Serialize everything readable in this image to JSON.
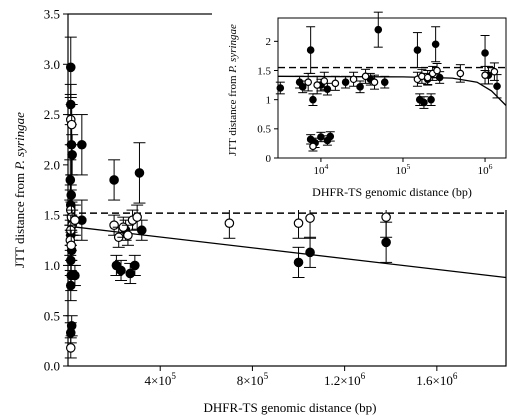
{
  "chart_data": [
    {
      "id": "main",
      "type": "scatter",
      "xlabel": "DHFR-TS genomic distance (bp)",
      "ylabel_prefix": "JTT distance from ",
      "ylabel_species": "P. syringae",
      "xlim": [
        0,
        1900000
      ],
      "ylim": [
        0,
        3.5
      ],
      "x_ticks": [
        400000,
        800000,
        1200000,
        1600000
      ],
      "x_tick_labels": [
        "4×10",
        "8×10",
        "1.2×10",
        "1.6×10"
      ],
      "x_tick_exponents": [
        "5",
        "5",
        "6",
        "6"
      ],
      "y_ticks": [
        0.0,
        0.5,
        1.0,
        1.5,
        2.0,
        2.5,
        3.0,
        3.5
      ],
      "y_tick_labels": [
        "0.0",
        "0.5",
        "1.0",
        "1.5",
        "2.0",
        "2.5",
        "3.0",
        "3.5"
      ],
      "reference_line": {
        "style": "dashed",
        "y": 1.52
      },
      "fit_line": {
        "style": "solid",
        "points": [
          [
            0,
            1.39
          ],
          [
            1900000,
            0.88
          ]
        ]
      },
      "series": [
        {
          "marker": "filled-circle",
          "points": [
            {
              "x": 12000,
              "y": 2.97,
              "err": 0.3
            },
            {
              "x": 12000,
              "y": 2.6,
              "err": 0.2
            },
            {
              "x": 15000,
              "y": 2.2,
              "err": 0.3
            },
            {
              "x": 18000,
              "y": 2.1,
              "err": 0.2
            },
            {
              "x": 10000,
              "y": 1.85,
              "err": 0.2
            },
            {
              "x": 14000,
              "y": 1.7,
              "err": 0.2
            },
            {
              "x": 12000,
              "y": 1.6,
              "err": 0.2
            },
            {
              "x": 20000,
              "y": 1.45,
              "err": 0.15
            },
            {
              "x": 12000,
              "y": 1.3,
              "err": 0.15
            },
            {
              "x": 16000,
              "y": 1.15,
              "err": 0.15
            },
            {
              "x": 12000,
              "y": 1.05,
              "err": 0.15
            },
            {
              "x": 14000,
              "y": 0.9,
              "err": 0.15
            },
            {
              "x": 12000,
              "y": 0.8,
              "err": 0.15
            },
            {
              "x": 16000,
              "y": 0.4,
              "err": 0.1
            },
            {
              "x": 12000,
              "y": 0.33,
              "err": 0.1
            },
            {
              "x": 30000,
              "y": 0.9,
              "err": 0.1
            },
            {
              "x": 60000,
              "y": 2.2,
              "err": 0.3
            },
            {
              "x": 60000,
              "y": 1.45,
              "err": 0.2
            },
            {
              "x": 200000,
              "y": 1.85,
              "err": 0.2
            },
            {
              "x": 210000,
              "y": 1.0,
              "err": 0.1
            },
            {
              "x": 230000,
              "y": 0.95,
              "err": 0.1
            },
            {
              "x": 250000,
              "y": 1.35,
              "err": 0.1
            },
            {
              "x": 270000,
              "y": 0.92,
              "err": 0.1
            },
            {
              "x": 290000,
              "y": 1.0,
              "err": 0.1
            },
            {
              "x": 310000,
              "y": 1.92,
              "err": 0.3
            },
            {
              "x": 320000,
              "y": 1.35,
              "err": 0.1
            },
            {
              "x": 1000000,
              "y": 1.03,
              "err": 0.15
            },
            {
              "x": 1050000,
              "y": 1.13,
              "err": 0.15
            },
            {
              "x": 1380000,
              "y": 1.23,
              "err": 0.2
            }
          ]
        },
        {
          "marker": "open-circle",
          "points": [
            {
              "x": 12000,
              "y": 2.45,
              "err": 0.25
            },
            {
              "x": 16000,
              "y": 2.4,
              "err": 0.2
            },
            {
              "x": 12000,
              "y": 1.55,
              "err": 0.2
            },
            {
              "x": 15000,
              "y": 1.48,
              "err": 0.15
            },
            {
              "x": 18000,
              "y": 1.4,
              "err": 0.15
            },
            {
              "x": 12000,
              "y": 1.35,
              "err": 0.15
            },
            {
              "x": 10000,
              "y": 1.25,
              "err": 0.15
            },
            {
              "x": 14000,
              "y": 1.2,
              "err": 0.15
            },
            {
              "x": 12000,
              "y": 0.18,
              "err": 0.1
            },
            {
              "x": 30000,
              "y": 1.45,
              "err": 0.15
            },
            {
              "x": 200000,
              "y": 1.4,
              "err": 0.1
            },
            {
              "x": 220000,
              "y": 1.28,
              "err": 0.1
            },
            {
              "x": 240000,
              "y": 1.38,
              "err": 0.1
            },
            {
              "x": 260000,
              "y": 1.3,
              "err": 0.1
            },
            {
              "x": 280000,
              "y": 1.45,
              "err": 0.1
            },
            {
              "x": 300000,
              "y": 1.48,
              "err": 0.12
            },
            {
              "x": 700000,
              "y": 1.42,
              "err": 0.15
            },
            {
              "x": 1000000,
              "y": 1.42,
              "err": 0.15
            },
            {
              "x": 1050000,
              "y": 1.47,
              "err": 0.2
            },
            {
              "x": 1380000,
              "y": 1.48,
              "err": 0.2
            }
          ]
        }
      ]
    },
    {
      "id": "inset",
      "type": "scatter",
      "xlabel": "DHFR-TS genomic distance (bp)",
      "ylabel_prefix": "JTT distance from ",
      "ylabel_species": "P. syringae",
      "x_scale": "log",
      "xlim": [
        3000,
        1800000
      ],
      "ylim": [
        0,
        2.4
      ],
      "x_ticks": [
        10000,
        100000,
        1000000
      ],
      "x_tick_labels": [
        "10",
        "10",
        "10"
      ],
      "x_tick_exponents": [
        "4",
        "5",
        "6"
      ],
      "y_ticks": [
        0,
        0.5,
        1.0,
        1.5,
        2.0
      ],
      "y_tick_labels": [
        "0",
        "0.5",
        "1",
        "1.5",
        "2"
      ],
      "reference_line": {
        "style": "dashed",
        "y": 1.55
      },
      "fit_line": {
        "style": "solid",
        "points": [
          [
            3000,
            1.4
          ],
          [
            100000,
            1.39
          ],
          [
            400000,
            1.37
          ],
          [
            800000,
            1.3
          ],
          [
            1200000,
            1.15
          ],
          [
            1800000,
            0.9
          ]
        ]
      },
      "series": [
        {
          "marker": "filled-circle",
          "points": [
            {
              "x": 3200,
              "y": 1.2,
              "err": 0.1
            },
            {
              "x": 5500,
              "y": 1.3,
              "err": 0.1
            },
            {
              "x": 6000,
              "y": 1.22,
              "err": 0.1
            },
            {
              "x": 7500,
              "y": 1.85,
              "err": 0.4
            },
            {
              "x": 8000,
              "y": 1.0,
              "err": 0.1
            },
            {
              "x": 7500,
              "y": 0.32,
              "err": 0.08
            },
            {
              "x": 8500,
              "y": 0.26,
              "err": 0.08
            },
            {
              "x": 10000,
              "y": 0.36,
              "err": 0.08
            },
            {
              "x": 12000,
              "y": 0.3,
              "err": 0.08
            },
            {
              "x": 13000,
              "y": 0.37,
              "err": 0.08
            },
            {
              "x": 10000,
              "y": 1.25,
              "err": 0.1
            },
            {
              "x": 12000,
              "y": 1.18,
              "err": 0.1
            },
            {
              "x": 20000,
              "y": 1.3,
              "err": 0.1
            },
            {
              "x": 30000,
              "y": 1.22,
              "err": 0.1
            },
            {
              "x": 40000,
              "y": 1.35,
              "err": 0.1
            },
            {
              "x": 50000,
              "y": 2.2,
              "err": 0.3
            },
            {
              "x": 60000,
              "y": 1.3,
              "err": 0.1
            },
            {
              "x": 150000,
              "y": 1.85,
              "err": 0.3
            },
            {
              "x": 160000,
              "y": 1.0,
              "err": 0.1
            },
            {
              "x": 180000,
              "y": 0.95,
              "err": 0.1
            },
            {
              "x": 200000,
              "y": 1.35,
              "err": 0.1
            },
            {
              "x": 220000,
              "y": 1.0,
              "err": 0.1
            },
            {
              "x": 250000,
              "y": 1.95,
              "err": 0.3
            },
            {
              "x": 280000,
              "y": 1.38,
              "err": 0.1
            },
            {
              "x": 1000000,
              "y": 1.8,
              "err": 0.3
            },
            {
              "x": 1100000,
              "y": 1.42,
              "err": 0.15
            },
            {
              "x": 1400000,
              "y": 1.23,
              "err": 0.2
            }
          ]
        },
        {
          "marker": "open-circle",
          "points": [
            {
              "x": 8000,
              "y": 0.2,
              "err": 0.08
            },
            {
              "x": 7000,
              "y": 1.3,
              "err": 0.15
            },
            {
              "x": 9000,
              "y": 1.25,
              "err": 0.15
            },
            {
              "x": 11000,
              "y": 1.32,
              "err": 0.15
            },
            {
              "x": 15000,
              "y": 1.28,
              "err": 0.12
            },
            {
              "x": 25000,
              "y": 1.35,
              "err": 0.12
            },
            {
              "x": 35000,
              "y": 1.4,
              "err": 0.12
            },
            {
              "x": 45000,
              "y": 1.3,
              "err": 0.12
            },
            {
              "x": 150000,
              "y": 1.35,
              "err": 0.12
            },
            {
              "x": 170000,
              "y": 1.4,
              "err": 0.12
            },
            {
              "x": 200000,
              "y": 1.38,
              "err": 0.12
            },
            {
              "x": 230000,
              "y": 1.45,
              "err": 0.12
            },
            {
              "x": 260000,
              "y": 1.5,
              "err": 0.12
            },
            {
              "x": 500000,
              "y": 1.45,
              "err": 0.15
            },
            {
              "x": 1000000,
              "y": 1.42,
              "err": 0.15
            },
            {
              "x": 1300000,
              "y": 1.48,
              "err": 0.15
            }
          ]
        }
      ]
    }
  ]
}
